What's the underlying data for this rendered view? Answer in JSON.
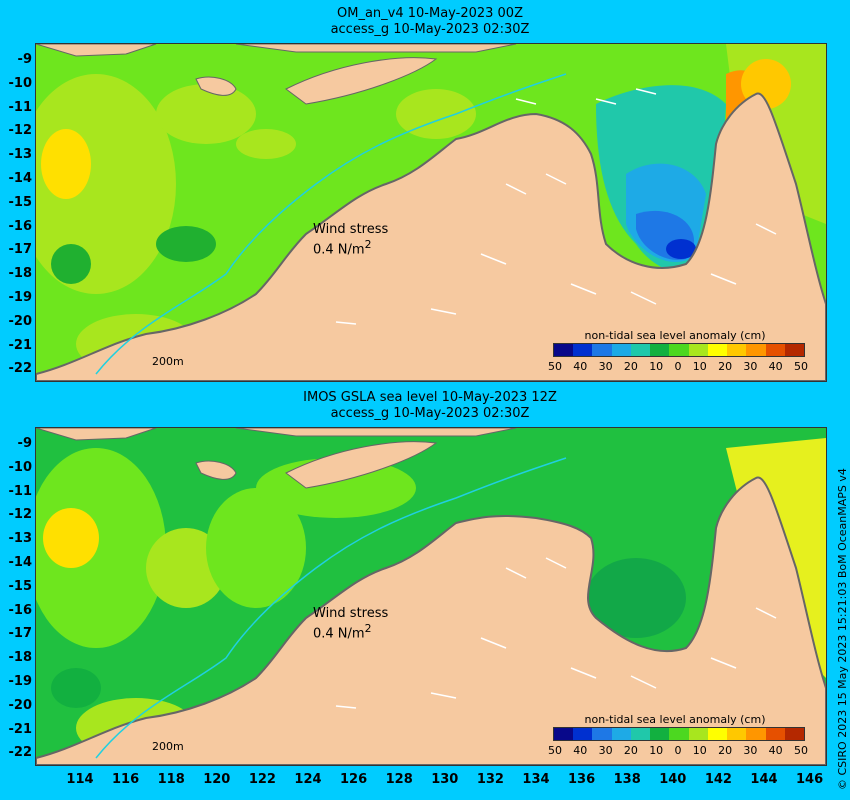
{
  "panels": [
    {
      "title_line1": "OM_an_v4  10-May-2023 00Z",
      "title_line2": "access_g 10-May-2023 02:30Z",
      "wind_label_line1": "Wind stress",
      "wind_label_line2": "0.4 N/m",
      "wind_label_sup": "2",
      "scale_label": "200m",
      "colorbar_title": "non-tidal sea level anomaly (cm)"
    },
    {
      "title_line1": "IMOS GSLA sea level  10-May-2023 12Z",
      "title_line2": "access_g 10-May-2023 02:30Z",
      "wind_label_line1": "Wind stress",
      "wind_label_line2": "0.4 N/m",
      "wind_label_sup": "2",
      "scale_label": "200m",
      "colorbar_title": "non-tidal sea level anomaly (cm)"
    }
  ],
  "y_ticks": [
    "-9",
    "-10",
    "-11",
    "-12",
    "-13",
    "-14",
    "-15",
    "-16",
    "-17",
    "-18",
    "-19",
    "-20",
    "-21",
    "-22"
  ],
  "x_ticks": [
    "114",
    "116",
    "118",
    "120",
    "122",
    "124",
    "126",
    "128",
    "130",
    "132",
    "134",
    "136",
    "138",
    "140",
    "142",
    "144",
    "146"
  ],
  "colorbar_ticks": [
    "50",
    "40",
    "30",
    "20",
    "10",
    "0",
    "10",
    "20",
    "30",
    "40",
    "50"
  ],
  "colorbar_colors": [
    "#08088a",
    "#0030d0",
    "#1e78e6",
    "#1eaae6",
    "#20c8aa",
    "#12b040",
    "#4cd820",
    "#a8e61e",
    "#ffff00",
    "#ffc800",
    "#ff9600",
    "#e65000",
    "#b42800"
  ],
  "credit": "© CSIRO 2023   15 May 2023 15:21:03 BoM OceanMAPS v4",
  "colors": {
    "background": "#00ccff",
    "land": "#f6c9a0",
    "coastline": "#666666",
    "bathymetry": "#20d0e0"
  }
}
